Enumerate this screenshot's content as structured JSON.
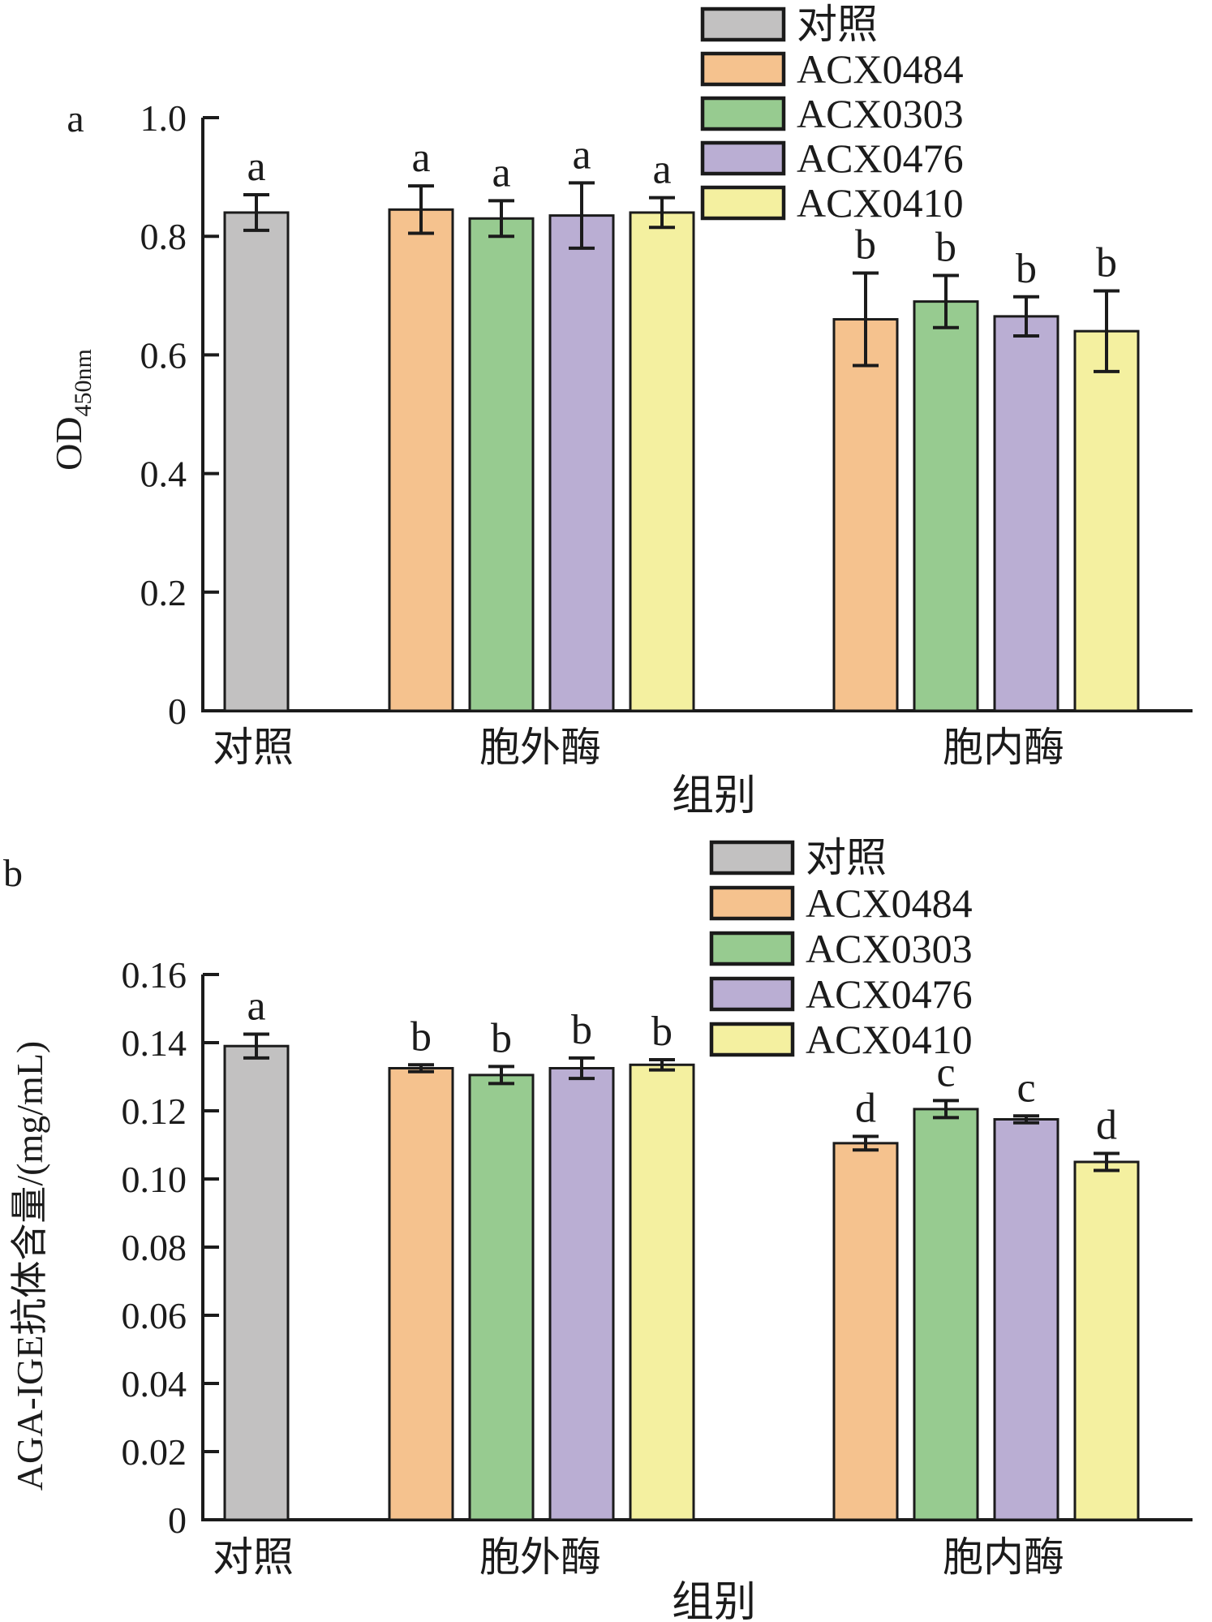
{
  "line_color": "#1b1b1b",
  "series_colors": {
    "对照": "#c2c1c1",
    "ACX0484": "#f5c28e",
    "ACX0303": "#97cb90",
    "ACX0476": "#baaed3",
    "ACX0410": "#f4f0a0"
  },
  "chart_data": [
    {
      "type": "bar",
      "panel_label": "a",
      "ylabel": "OD",
      "ylabel_subscript": "450nm",
      "xlabel": "组别",
      "ylim": [
        0,
        1.0
      ],
      "ytick_values": [
        0,
        0.2,
        0.4,
        0.6,
        0.8,
        1.0
      ],
      "ytick_labels": [
        "0",
        "0.2",
        "0.4",
        "0.6",
        "0.8",
        "1.0"
      ],
      "grid": false,
      "legend_position": "top-right",
      "legend": [
        "对照",
        "ACX0484",
        "ACX0303",
        "ACX0476",
        "ACX0410"
      ],
      "categories": [
        "对照",
        "胞外酶",
        "胞内酶"
      ],
      "bars": [
        {
          "category": "对照",
          "series": "对照",
          "value": 0.84,
          "error": 0.03,
          "sig_letter": "a"
        },
        {
          "category": "胞外酶",
          "series": "ACX0484",
          "value": 0.845,
          "error": 0.04,
          "sig_letter": "a"
        },
        {
          "category": "胞外酶",
          "series": "ACX0303",
          "value": 0.83,
          "error": 0.03,
          "sig_letter": "a"
        },
        {
          "category": "胞外酶",
          "series": "ACX0476",
          "value": 0.835,
          "error": 0.055,
          "sig_letter": "a"
        },
        {
          "category": "胞外酶",
          "series": "ACX0410",
          "value": 0.84,
          "error": 0.025,
          "sig_letter": "a"
        },
        {
          "category": "胞内酶",
          "series": "ACX0484",
          "value": 0.66,
          "error": 0.078,
          "sig_letter": "b"
        },
        {
          "category": "胞内酶",
          "series": "ACX0303",
          "value": 0.69,
          "error": 0.044,
          "sig_letter": "b"
        },
        {
          "category": "胞内酶",
          "series": "ACX0476",
          "value": 0.665,
          "error": 0.033,
          "sig_letter": "b"
        },
        {
          "category": "胞内酶",
          "series": "ACX0410",
          "value": 0.64,
          "error": 0.068,
          "sig_letter": "b"
        }
      ]
    },
    {
      "type": "bar",
      "panel_label": "b",
      "ylabel": "AGA-IGE抗体含量/(mg/mL)",
      "ylabel_subscript": "",
      "xlabel": "组别",
      "ylim": [
        0,
        0.16
      ],
      "ytick_values": [
        0,
        0.02,
        0.04,
        0.06,
        0.08,
        0.1,
        0.12,
        0.14,
        0.16
      ],
      "ytick_labels": [
        "0",
        "0.02",
        "0.04",
        "0.06",
        "0.08",
        "0.10",
        "0.12",
        "0.14",
        "0.16"
      ],
      "grid": false,
      "legend_position": "top-right",
      "legend": [
        "对照",
        "ACX0484",
        "ACX0303",
        "ACX0476",
        "ACX0410"
      ],
      "categories": [
        "对照",
        "胞外酶",
        "胞内酶"
      ],
      "bars": [
        {
          "category": "对照",
          "series": "对照",
          "value": 0.139,
          "error": 0.0035,
          "sig_letter": "a"
        },
        {
          "category": "胞外酶",
          "series": "ACX0484",
          "value": 0.1325,
          "error": 0.001,
          "sig_letter": "b"
        },
        {
          "category": "胞外酶",
          "series": "ACX0303",
          "value": 0.1305,
          "error": 0.0025,
          "sig_letter": "b"
        },
        {
          "category": "胞外酶",
          "series": "ACX0476",
          "value": 0.1325,
          "error": 0.003,
          "sig_letter": "b"
        },
        {
          "category": "胞外酶",
          "series": "ACX0410",
          "value": 0.1335,
          "error": 0.0015,
          "sig_letter": "b"
        },
        {
          "category": "胞内酶",
          "series": "ACX0484",
          "value": 0.1105,
          "error": 0.002,
          "sig_letter": "d"
        },
        {
          "category": "胞内酶",
          "series": "ACX0303",
          "value": 0.1205,
          "error": 0.0025,
          "sig_letter": "c"
        },
        {
          "category": "胞内酶",
          "series": "ACX0476",
          "value": 0.1175,
          "error": 0.001,
          "sig_letter": "c"
        },
        {
          "category": "胞内酶",
          "series": "ACX0410",
          "value": 0.105,
          "error": 0.0025,
          "sig_letter": "d"
        }
      ]
    }
  ]
}
